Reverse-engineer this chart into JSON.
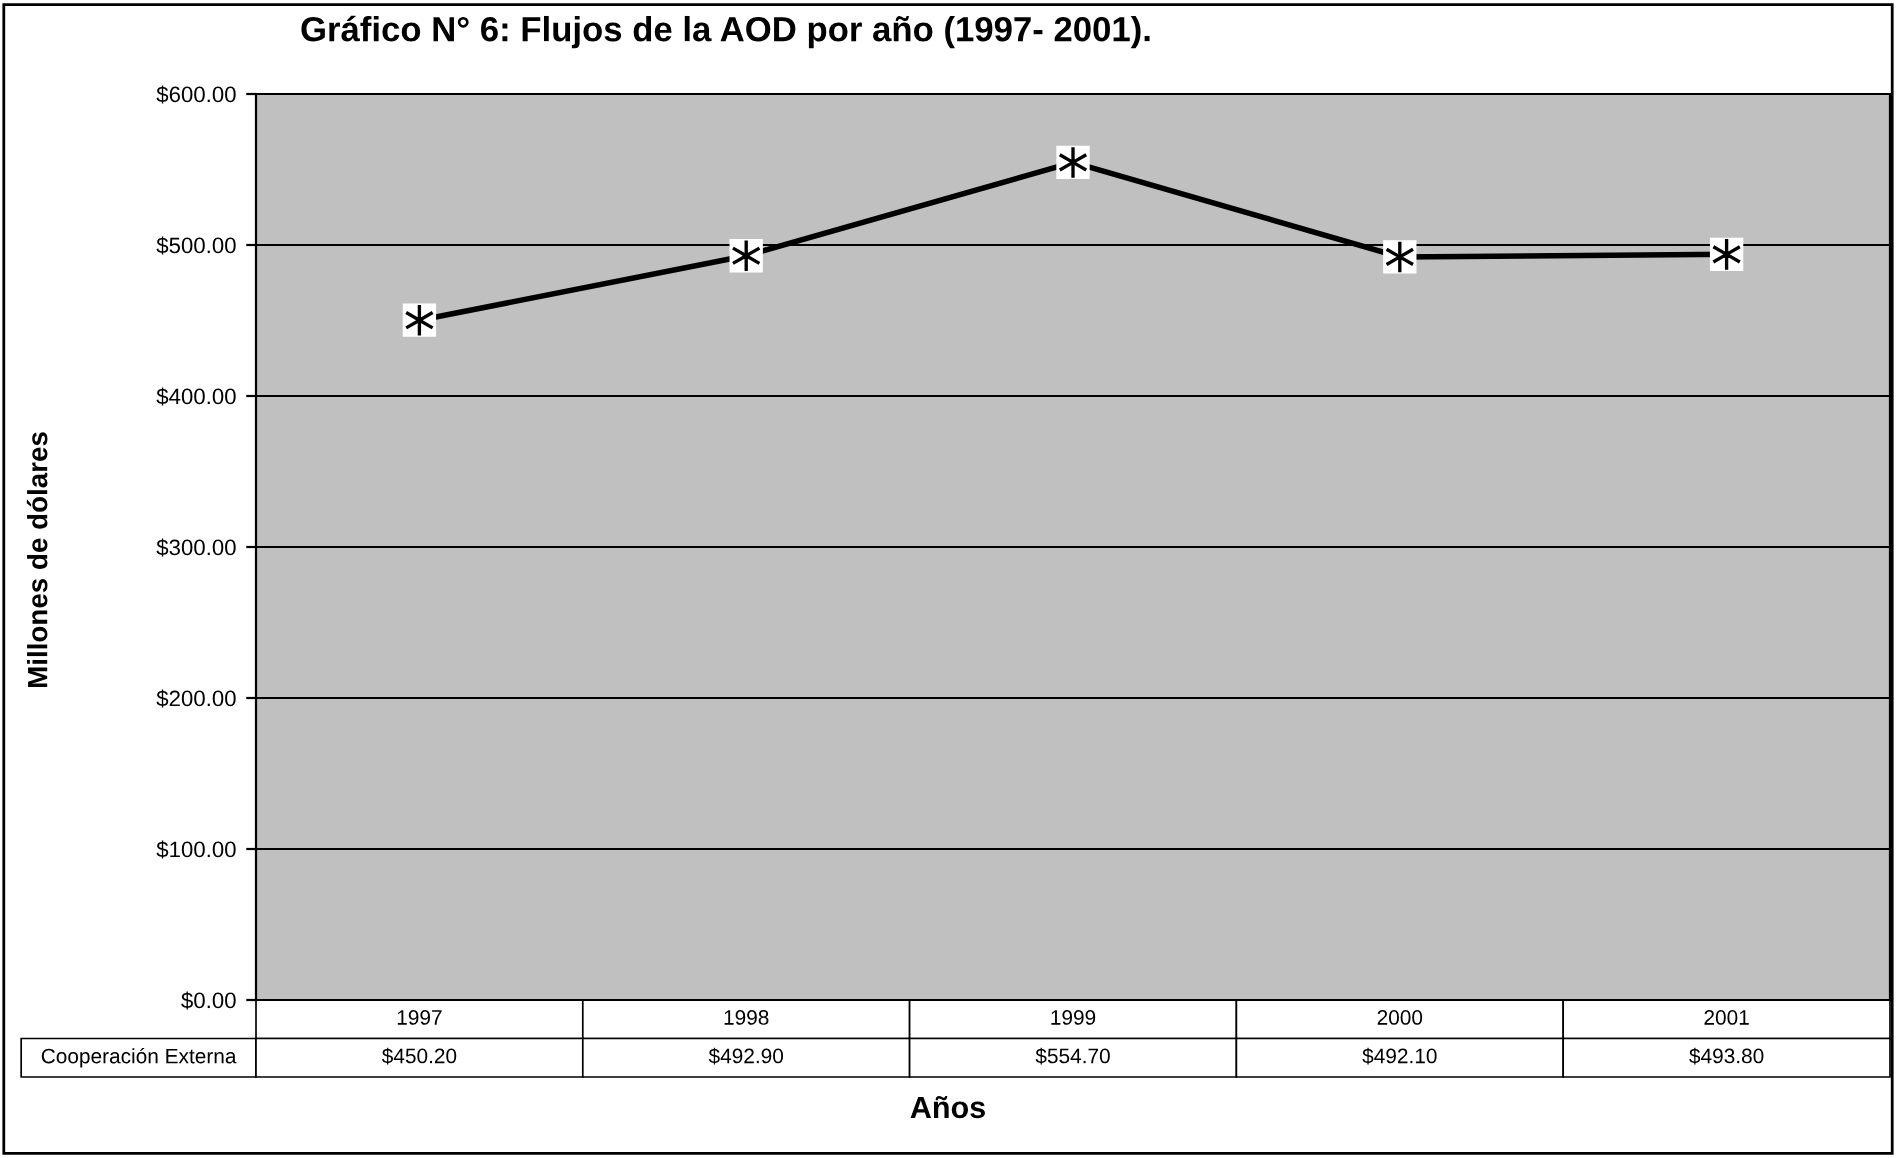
{
  "chart_data": {
    "type": "line",
    "title": "Gráfico N° 6: Flujos de la AOD por año (1997- 2001).",
    "xlabel": "Años",
    "ylabel": "Millones de dólares",
    "categories": [
      "1997",
      "1998",
      "1999",
      "2000",
      "2001"
    ],
    "series": [
      {
        "name": "Cooperación Externa",
        "color": "#000000",
        "values": [
          450.2,
          492.9,
          554.7,
          492.1,
          493.8
        ],
        "value_labels": [
          "$450.20",
          "$492.90",
          "$554.70",
          "$492.10",
          "$493.80"
        ]
      }
    ],
    "ylim": [
      0,
      600
    ],
    "yticks": [
      {
        "value": 0,
        "label": "$0.00"
      },
      {
        "value": 100,
        "label": "$100.00"
      },
      {
        "value": 200,
        "label": "$200.00"
      },
      {
        "value": 300,
        "label": "$300.00"
      },
      {
        "value": 400,
        "label": "$400.00"
      },
      {
        "value": 500,
        "label": "$500.00"
      },
      {
        "value": 600,
        "label": "$600.00"
      }
    ],
    "grid": "y",
    "marker": "cross",
    "line_style": "solid",
    "legend": false
  }
}
